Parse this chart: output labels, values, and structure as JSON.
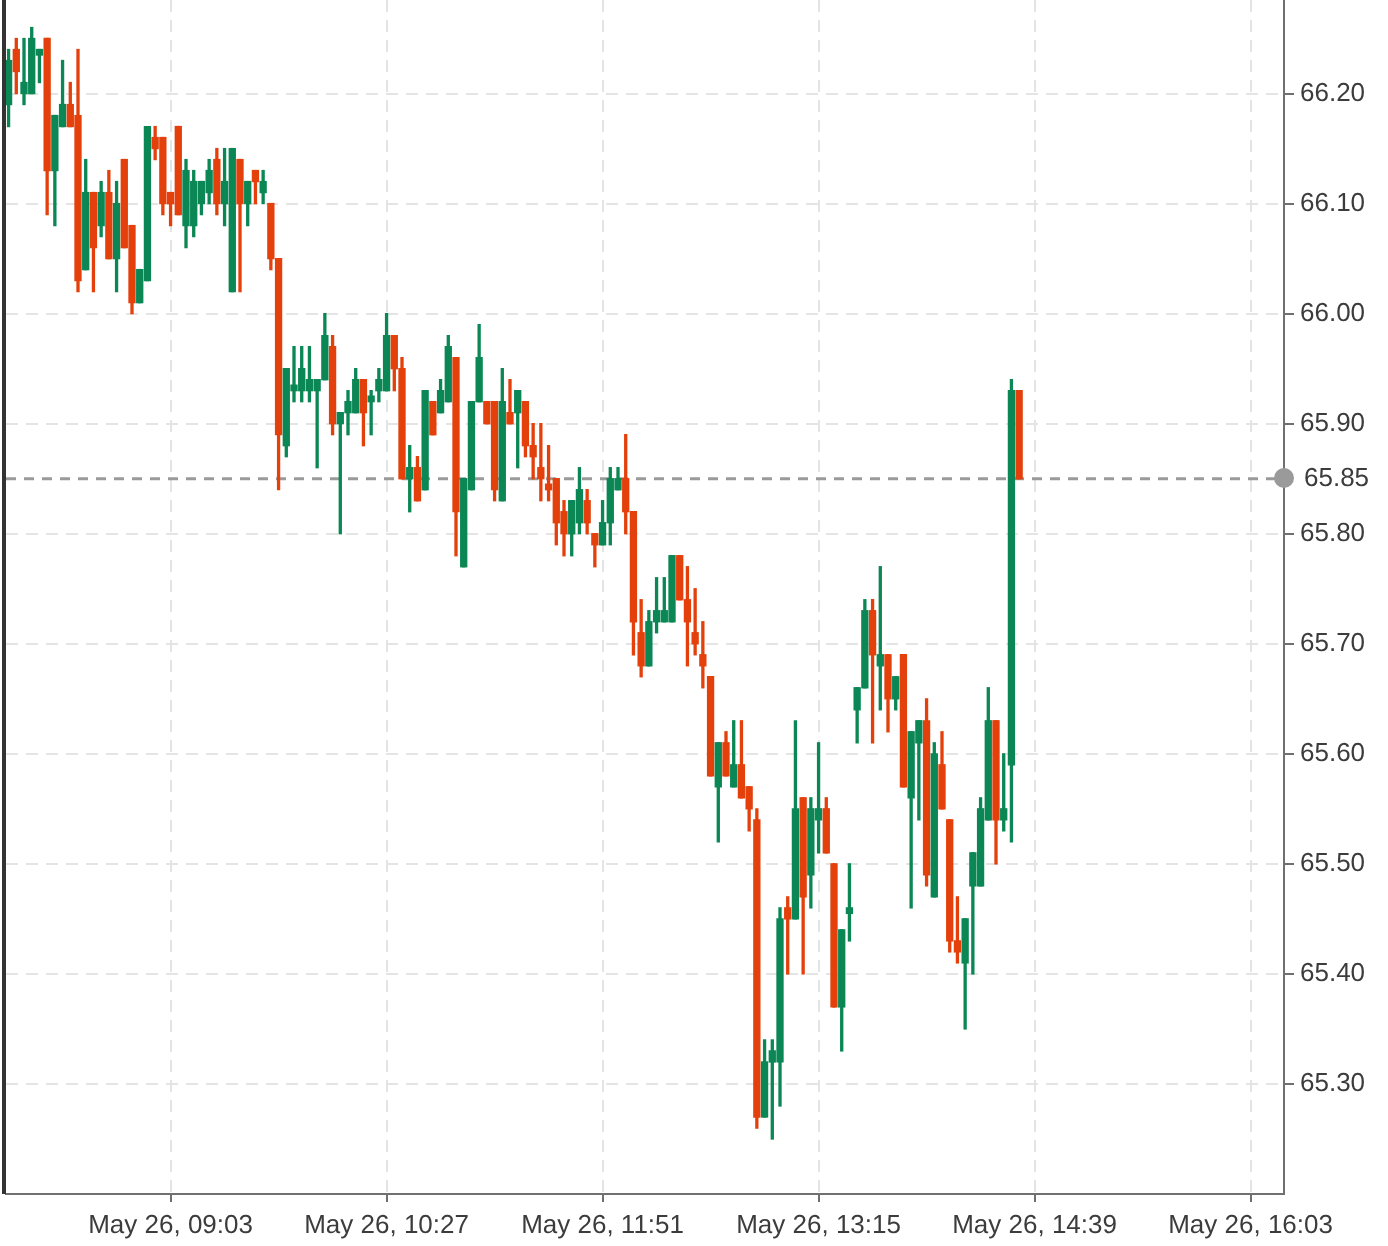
{
  "chart_data": {
    "type": "candlestick",
    "x": [
      "--05-26T08:00",
      "--05-26T08:03",
      "--05-26T08:06",
      "--05-26T08:09",
      "--05-26T08:12",
      "--05-26T08:15",
      "--05-26T08:18",
      "--05-26T08:21",
      "--05-26T08:24",
      "--05-26T08:27",
      "--05-26T08:30",
      "--05-26T08:33",
      "--05-26T08:36",
      "--05-26T08:39",
      "--05-26T08:42",
      "--05-26T08:45",
      "--05-26T08:48",
      "--05-26T08:51",
      "--05-26T08:54",
      "--05-26T08:57",
      "--05-26T09:00",
      "--05-26T09:03",
      "--05-26T09:06",
      "--05-26T09:09",
      "--05-26T09:12",
      "--05-26T09:15",
      "--05-26T09:18",
      "--05-26T09:21",
      "--05-26T09:24",
      "--05-26T09:27",
      "--05-26T09:30",
      "--05-26T09:33",
      "--05-26T09:36",
      "--05-26T09:39",
      "--05-26T09:42",
      "--05-26T09:45",
      "--05-26T09:48",
      "--05-26T09:51",
      "--05-26T09:54",
      "--05-26T09:57",
      "--05-26T10:00",
      "--05-26T10:03",
      "--05-26T10:06",
      "--05-26T10:09",
      "--05-26T10:12",
      "--05-26T10:15",
      "--05-26T10:18",
      "--05-26T10:21",
      "--05-26T10:24",
      "--05-26T10:27",
      "--05-26T10:30",
      "--05-26T10:33",
      "--05-26T10:36",
      "--05-26T10:39",
      "--05-26T10:42",
      "--05-26T10:45",
      "--05-26T10:48",
      "--05-26T10:51",
      "--05-26T10:54",
      "--05-26T10:57",
      "--05-26T11:00",
      "--05-26T11:03",
      "--05-26T11:06",
      "--05-26T11:09",
      "--05-26T11:12",
      "--05-26T11:15",
      "--05-26T11:18",
      "--05-26T11:21",
      "--05-26T11:24",
      "--05-26T11:27",
      "--05-26T11:30",
      "--05-26T11:33",
      "--05-26T11:36",
      "--05-26T11:39",
      "--05-26T11:42",
      "--05-26T11:45",
      "--05-26T11:48",
      "--05-26T11:51",
      "--05-26T11:54",
      "--05-26T11:57",
      "--05-26T12:00",
      "--05-26T12:03",
      "--05-26T12:06",
      "--05-26T12:09",
      "--05-26T12:12",
      "--05-26T12:15",
      "--05-26T12:18",
      "--05-26T12:21",
      "--05-26T12:24",
      "--05-26T12:27",
      "--05-26T12:30",
      "--05-26T12:33",
      "--05-26T12:36",
      "--05-26T12:39",
      "--05-26T12:42",
      "--05-26T12:45",
      "--05-26T12:48",
      "--05-26T12:51",
      "--05-26T12:54",
      "--05-26T12:57",
      "--05-26T13:00",
      "--05-26T13:03",
      "--05-26T13:06",
      "--05-26T13:09",
      "--05-26T13:12",
      "--05-26T13:15",
      "--05-26T13:18",
      "--05-26T13:21",
      "--05-26T13:24",
      "--05-26T13:27",
      "--05-26T13:30",
      "--05-26T13:33",
      "--05-26T13:36",
      "--05-26T13:39",
      "--05-26T13:42",
      "--05-26T13:45",
      "--05-26T13:48",
      "--05-26T13:51",
      "--05-26T13:54",
      "--05-26T13:57",
      "--05-26T14:00",
      "--05-26T14:03",
      "--05-26T14:06",
      "--05-26T14:09",
      "--05-26T14:12",
      "--05-26T14:15",
      "--05-26T14:18",
      "--05-26T14:21",
      "--05-26T14:24",
      "--05-26T14:27",
      "--05-26T14:30",
      "--05-26T14:33"
    ],
    "ohlc": [
      [
        66.19,
        66.24,
        66.17,
        66.23
      ],
      [
        66.24,
        66.25,
        66.2,
        66.22
      ],
      [
        66.2,
        66.25,
        66.19,
        66.21
      ],
      [
        66.2,
        66.26,
        66.2,
        66.25
      ],
      [
        66.235,
        66.24,
        66.21,
        66.24
      ],
      [
        66.25,
        66.25,
        66.09,
        66.13
      ],
      [
        66.13,
        66.18,
        66.08,
        66.18
      ],
      [
        66.17,
        66.23,
        66.17,
        66.19
      ],
      [
        66.19,
        66.21,
        66.17,
        66.17
      ],
      [
        66.18,
        66.24,
        66.02,
        66.03
      ],
      [
        66.04,
        66.14,
        66.04,
        66.11
      ],
      [
        66.11,
        66.11,
        66.02,
        66.06
      ],
      [
        66.08,
        66.12,
        66.07,
        66.11
      ],
      [
        66.11,
        66.13,
        66.05,
        66.05
      ],
      [
        66.05,
        66.12,
        66.02,
        66.1
      ],
      [
        66.14,
        66.14,
        66.06,
        66.06
      ],
      [
        66.08,
        66.08,
        66,
        66.01
      ],
      [
        66.01,
        66.04,
        66.01,
        66.04
      ],
      [
        66.03,
        66.17,
        66.03,
        66.17
      ],
      [
        66.16,
        66.17,
        66.14,
        66.15
      ],
      [
        66.16,
        66.16,
        66.09,
        66.1
      ],
      [
        66.11,
        66.11,
        66.08,
        66.1
      ],
      [
        66.17,
        66.17,
        66.09,
        66.09
      ],
      [
        66.08,
        66.14,
        66.06,
        66.13
      ],
      [
        66.08,
        66.13,
        66.07,
        66.12
      ],
      [
        66.1,
        66.12,
        66.09,
        66.12
      ],
      [
        66.11,
        66.14,
        66.1,
        66.13
      ],
      [
        66.14,
        66.15,
        66.09,
        66.1
      ],
      [
        66.1,
        66.15,
        66.08,
        66.12
      ],
      [
        66.02,
        66.15,
        66.02,
        66.15
      ],
      [
        66.14,
        66.14,
        66.02,
        66.1
      ],
      [
        66.1,
        66.12,
        66.08,
        66.12
      ],
      [
        66.13,
        66.13,
        66.1,
        66.12
      ],
      [
        66.11,
        66.13,
        66.1,
        66.12
      ],
      [
        66.1,
        66.1,
        66.04,
        66.05
      ],
      [
        66.05,
        66.05,
        65.84,
        65.89
      ],
      [
        65.88,
        65.95,
        65.87,
        65.95
      ],
      [
        65.93,
        65.97,
        65.92,
        65.935
      ],
      [
        65.93,
        65.97,
        65.92,
        65.95
      ],
      [
        65.93,
        65.97,
        65.92,
        65.94
      ],
      [
        65.93,
        65.94,
        65.86,
        65.94
      ],
      [
        65.94,
        66,
        65.94,
        65.98
      ],
      [
        65.97,
        65.98,
        65.89,
        65.9
      ],
      [
        65.9,
        65.91,
        65.8,
        65.91
      ],
      [
        65.91,
        65.93,
        65.89,
        65.92
      ],
      [
        65.91,
        65.95,
        65.91,
        65.94
      ],
      [
        65.94,
        65.94,
        65.88,
        65.91
      ],
      [
        65.92,
        65.93,
        65.89,
        65.925
      ],
      [
        65.93,
        65.95,
        65.92,
        65.94
      ],
      [
        65.93,
        66,
        65.93,
        65.98
      ],
      [
        65.98,
        65.98,
        65.93,
        65.95
      ],
      [
        65.95,
        65.96,
        65.85,
        65.85
      ],
      [
        65.85,
        65.88,
        65.82,
        65.86
      ],
      [
        65.86,
        65.87,
        65.83,
        65.83
      ],
      [
        65.84,
        65.93,
        65.84,
        65.93
      ],
      [
        65.92,
        65.92,
        65.89,
        65.89
      ],
      [
        65.91,
        65.94,
        65.91,
        65.93
      ],
      [
        65.92,
        65.98,
        65.92,
        65.97
      ],
      [
        65.96,
        65.96,
        65.78,
        65.82
      ],
      [
        65.77,
        65.85,
        65.77,
        65.85
      ],
      [
        65.84,
        65.92,
        65.84,
        65.92
      ],
      [
        65.92,
        65.99,
        65.92,
        65.96
      ],
      [
        65.92,
        65.92,
        65.9,
        65.9
      ],
      [
        65.92,
        65.92,
        65.83,
        65.84
      ],
      [
        65.83,
        65.95,
        65.83,
        65.92
      ],
      [
        65.91,
        65.94,
        65.9,
        65.9
      ],
      [
        65.91,
        65.93,
        65.86,
        65.93
      ],
      [
        65.92,
        65.92,
        65.87,
        65.88
      ],
      [
        65.88,
        65.9,
        65.85,
        65.87
      ],
      [
        65.86,
        65.9,
        65.83,
        65.85
      ],
      [
        65.845,
        65.88,
        65.83,
        65.84
      ],
      [
        65.85,
        65.85,
        65.79,
        65.81
      ],
      [
        65.82,
        65.83,
        65.78,
        65.8
      ],
      [
        65.8,
        65.83,
        65.78,
        65.83
      ],
      [
        65.81,
        65.86,
        65.8,
        65.84
      ],
      [
        65.83,
        65.84,
        65.8,
        65.81
      ],
      [
        65.8,
        65.8,
        65.77,
        65.79
      ],
      [
        65.79,
        65.83,
        65.79,
        65.81
      ],
      [
        65.81,
        65.86,
        65.79,
        65.85
      ],
      [
        65.84,
        65.86,
        65.84,
        65.85
      ],
      [
        65.85,
        65.89,
        65.8,
        65.82
      ],
      [
        65.82,
        65.82,
        65.69,
        65.72
      ],
      [
        65.71,
        65.74,
        65.67,
        65.68
      ],
      [
        65.68,
        65.73,
        65.68,
        65.72
      ],
      [
        65.72,
        65.76,
        65.71,
        65.73
      ],
      [
        65.72,
        65.76,
        65.72,
        65.73
      ],
      [
        65.72,
        65.78,
        65.72,
        65.78
      ],
      [
        65.78,
        65.78,
        65.74,
        65.74
      ],
      [
        65.74,
        65.77,
        65.68,
        65.72
      ],
      [
        65.71,
        65.75,
        65.69,
        65.7
      ],
      [
        65.69,
        65.72,
        65.66,
        65.68
      ],
      [
        65.67,
        65.67,
        65.58,
        65.58
      ],
      [
        65.57,
        65.61,
        65.52,
        65.61
      ],
      [
        65.61,
        65.62,
        65.58,
        65.58
      ],
      [
        65.57,
        65.63,
        65.57,
        65.59
      ],
      [
        65.59,
        65.63,
        65.56,
        65.56
      ],
      [
        65.57,
        65.57,
        65.53,
        65.55
      ],
      [
        65.54,
        65.55,
        65.26,
        65.27
      ],
      [
        65.27,
        65.34,
        65.27,
        65.32
      ],
      [
        65.32,
        65.34,
        65.25,
        65.33
      ],
      [
        65.32,
        65.46,
        65.28,
        65.45
      ],
      [
        65.46,
        65.47,
        65.4,
        65.45
      ],
      [
        65.45,
        65.63,
        65.45,
        65.55
      ],
      [
        65.56,
        65.56,
        65.4,
        65.47
      ],
      [
        65.49,
        65.56,
        65.46,
        65.55
      ],
      [
        65.54,
        65.61,
        65.51,
        65.55
      ],
      [
        65.55,
        65.56,
        65.51,
        65.51
      ],
      [
        65.5,
        65.5,
        65.37,
        65.37
      ],
      [
        65.37,
        65.44,
        65.33,
        65.44
      ],
      [
        65.455,
        65.5,
        65.43,
        65.46
      ],
      [
        65.64,
        65.66,
        65.61,
        65.66
      ],
      [
        65.66,
        65.74,
        65.66,
        65.73
      ],
      [
        65.73,
        65.74,
        65.61,
        65.69
      ],
      [
        65.68,
        65.77,
        65.64,
        65.69
      ],
      [
        65.69,
        65.69,
        65.62,
        65.65
      ],
      [
        65.65,
        65.67,
        65.64,
        65.67
      ],
      [
        65.69,
        65.69,
        65.57,
        65.57
      ],
      [
        65.56,
        65.62,
        65.46,
        65.62
      ],
      [
        65.61,
        65.63,
        65.54,
        65.63
      ],
      [
        65.63,
        65.65,
        65.48,
        65.49
      ],
      [
        65.47,
        65.61,
        65.47,
        65.6
      ],
      [
        65.59,
        65.62,
        65.55,
        65.55
      ],
      [
        65.54,
        65.54,
        65.42,
        65.43
      ],
      [
        65.43,
        65.47,
        65.41,
        65.42
      ],
      [
        65.41,
        65.45,
        65.35,
        65.45
      ],
      [
        65.48,
        65.51,
        65.4,
        65.51
      ],
      [
        65.48,
        65.56,
        65.48,
        65.55
      ],
      [
        65.54,
        65.66,
        65.54,
        65.63
      ],
      [
        65.63,
        65.63,
        65.5,
        65.54
      ],
      [
        65.54,
        65.6,
        65.53,
        65.55
      ],
      [
        65.59,
        65.94,
        65.52,
        65.93
      ],
      [
        65.93,
        65.93,
        65.85,
        65.85
      ]
    ],
    "colors": [
      "#0a8754",
      "#e4400c",
      "#0a8754",
      "#0a8754",
      "#0a8754",
      "#e4400c",
      "#0a8754",
      "#0a8754",
      "#e4400c",
      "#e4400c",
      "#0a8754",
      "#e4400c",
      "#0a8754",
      "#e4400c",
      "#0a8754",
      "#e4400c",
      "#e4400c",
      "#0a8754",
      "#0a8754",
      "#e4400c",
      "#e4400c",
      "#e4400c",
      "#e4400c",
      "#0a8754",
      "#0a8754",
      "#0a8754",
      "#0a8754",
      "#e4400c",
      "#0a8754",
      "#0a8754",
      "#e4400c",
      "#0a8754",
      "#e4400c",
      "#0a8754",
      "#e4400c",
      "#e4400c",
      "#0a8754",
      "#0a8754",
      "#0a8754",
      "#0a8754",
      "#0a8754",
      "#0a8754",
      "#e4400c",
      "#0a8754",
      "#0a8754",
      "#0a8754",
      "#e4400c",
      "#0a8754",
      "#0a8754",
      "#0a8754",
      "#e4400c",
      "#e4400c",
      "#0a8754",
      "#e4400c",
      "#0a8754",
      "#e4400c",
      "#0a8754",
      "#0a8754",
      "#e4400c",
      "#0a8754",
      "#0a8754",
      "#0a8754",
      "#e4400c",
      "#e4400c",
      "#0a8754",
      "#e4400c",
      "#0a8754",
      "#e4400c",
      "#e4400c",
      "#e4400c",
      "#e4400c",
      "#e4400c",
      "#e4400c",
      "#0a8754",
      "#0a8754",
      "#e4400c",
      "#e4400c",
      "#0a8754",
      "#0a8754",
      "#0a8754",
      "#e4400c",
      "#e4400c",
      "#e4400c",
      "#0a8754",
      "#0a8754",
      "#0a8754",
      "#0a8754",
      "#e4400c",
      "#e4400c",
      "#e4400c",
      "#e4400c",
      "#e4400c",
      "#0a8754",
      "#e4400c",
      "#0a8754",
      "#e4400c",
      "#e4400c",
      "#e4400c",
      "#0a8754",
      "#0a8754",
      "#0a8754",
      "#e4400c",
      "#0a8754",
      "#e4400c",
      "#0a8754",
      "#0a8754",
      "#e4400c",
      "#e4400c",
      "#0a8754",
      "#0a8754",
      "#0a8754",
      "#0a8754",
      "#e4400c",
      "#0a8754",
      "#e4400c",
      "#0a8754",
      "#e4400c",
      "#0a8754",
      "#0a8754",
      "#e4400c",
      "#0a8754",
      "#e4400c",
      "#e4400c",
      "#e4400c",
      "#0a8754",
      "#0a8754",
      "#0a8754",
      "#0a8754",
      "#e4400c",
      "#0a8754",
      "#0a8754",
      "#e4400c"
    ],
    "xlim": [
      "--05-26T07:59",
      "--05-26T16:16"
    ],
    "ylim": [
      65.2,
      66.285
    ],
    "xticks": [
      {
        "value": "--05-26T09:03",
        "label": "May 26, 09:03"
      },
      {
        "value": "--05-26T10:27",
        "label": "May 26, 10:27"
      },
      {
        "value": "--05-26T11:51",
        "label": "May 26, 11:51"
      },
      {
        "value": "--05-26T13:15",
        "label": "May 26, 13:15"
      },
      {
        "value": "--05-26T14:39",
        "label": "May 26, 14:39"
      },
      {
        "value": "--05-26T16:03",
        "label": "May 26, 16:03"
      }
    ],
    "yticks": [
      {
        "value": 65.3,
        "label": "65.30"
      },
      {
        "value": 65.4,
        "label": "65.40"
      },
      {
        "value": 65.5,
        "label": "65.50"
      },
      {
        "value": 65.6,
        "label": "65.60"
      },
      {
        "value": 65.7,
        "label": "65.70"
      },
      {
        "value": 65.8,
        "label": "65.80"
      },
      {
        "value": 65.9,
        "label": "65.90"
      },
      {
        "value": 66,
        "label": "66.00"
      },
      {
        "value": 66.1,
        "label": "66.10"
      },
      {
        "value": 66.2,
        "label": "66.20"
      }
    ],
    "grid": true,
    "ref_lines": [
      {
        "axis": "y",
        "value": 65.85,
        "label": "65.85",
        "color": "#9a9a9a",
        "line_style": "dashed"
      }
    ]
  }
}
